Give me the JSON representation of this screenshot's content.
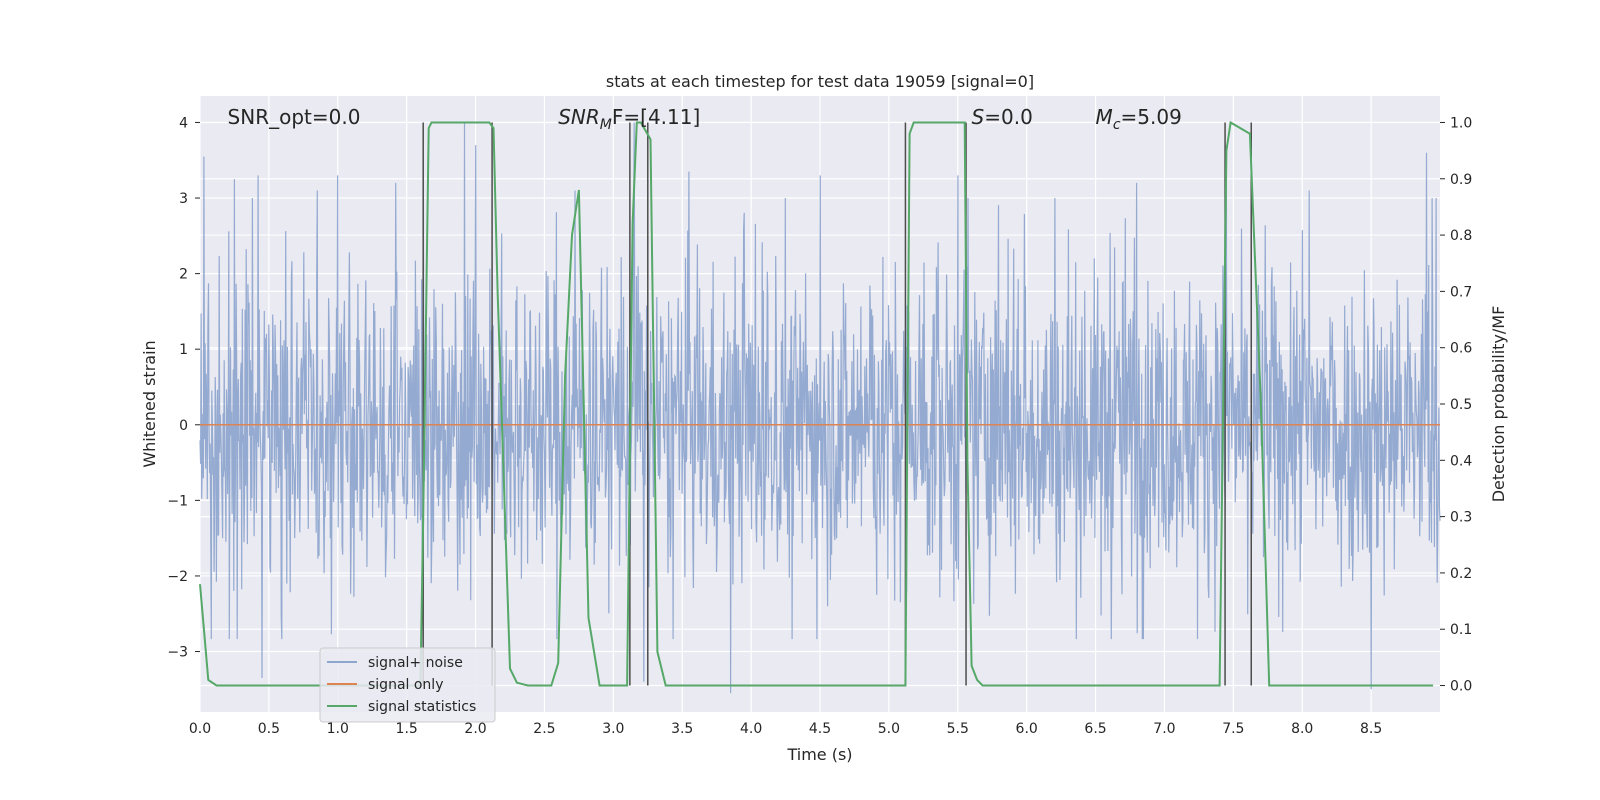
{
  "chart_data": {
    "type": "line",
    "title": "stats at each timestep for test data 19059 [signal=0]",
    "xlabel": "Time (s)",
    "ylabel": "Whitened strain",
    "ylabel_right": "Detection probability/MF",
    "xlim": [
      0,
      9.0
    ],
    "ylim": [
      -3.8,
      4.35
    ],
    "ylim_right": [
      -0.047,
      1.047
    ],
    "xticks": [
      0.0,
      0.5,
      1.0,
      1.5,
      2.0,
      2.5,
      3.0,
      3.5,
      4.0,
      4.5,
      5.0,
      5.5,
      6.0,
      6.5,
      7.0,
      7.5,
      8.0,
      8.5
    ],
    "xtick_labels": [
      "0.0",
      "0.5",
      "1.0",
      "1.5",
      "2.0",
      "2.5",
      "3.0",
      "3.5",
      "4.0",
      "4.5",
      "5.0",
      "5.5",
      "6.0",
      "6.5",
      "7.0",
      "7.5",
      "8.0",
      "8.5"
    ],
    "yticks": [
      -3,
      -2,
      -1,
      0,
      1,
      2,
      3,
      4
    ],
    "ytick_labels": [
      "−3",
      "−2",
      "−1",
      "0",
      "1",
      "2",
      "3",
      "4"
    ],
    "yticks_right": [
      0.0,
      0.1,
      0.2,
      0.3,
      0.4,
      0.5,
      0.6,
      0.7,
      0.8,
      0.9,
      1.0
    ],
    "ytick_labels_right": [
      "0.0",
      "0.1",
      "0.2",
      "0.3",
      "0.4",
      "0.5",
      "0.6",
      "0.7",
      "0.8",
      "0.9",
      "1.0"
    ],
    "grid": true,
    "legend_position": "lower-left",
    "colors": {
      "background": "#eaeaf2",
      "grid": "#ffffff",
      "noise": "#8fa6cf",
      "signal": "#dd8452",
      "stats": "#55a868",
      "vlines": "#4d4d4d"
    },
    "series": [
      {
        "name": "signal+ noise",
        "axis": "left",
        "kind": "noise",
        "envelope_typical_max": 2.4,
        "envelope_typical_min": -2.1,
        "peak_samples": [
          {
            "x": 0.03,
            "y": 3.55
          },
          {
            "x": 0.25,
            "y": 3.25
          },
          {
            "x": 0.42,
            "y": 3.3
          },
          {
            "x": 0.45,
            "y": -3.35
          },
          {
            "x": 0.85,
            "y": 3.1
          },
          {
            "x": 1.0,
            "y": 3.3
          },
          {
            "x": 1.42,
            "y": 3.2
          },
          {
            "x": 1.62,
            "y": 3.5
          },
          {
            "x": 1.92,
            "y": 4.0
          },
          {
            "x": 2.0,
            "y": 3.7
          },
          {
            "x": 2.72,
            "y": 3.1
          },
          {
            "x": 3.15,
            "y": 4.0
          },
          {
            "x": 3.22,
            "y": -3.4
          },
          {
            "x": 3.55,
            "y": 3.35
          },
          {
            "x": 3.85,
            "y": -3.55
          },
          {
            "x": 4.5,
            "y": 3.3
          },
          {
            "x": 5.5,
            "y": 3.3
          },
          {
            "x": 6.8,
            "y": 3.2
          },
          {
            "x": 7.45,
            "y": 3.7
          },
          {
            "x": 8.05,
            "y": 3.1
          },
          {
            "x": 8.5,
            "y": -3.5
          },
          {
            "x": 8.9,
            "y": 3.6
          }
        ]
      },
      {
        "name": "signal only",
        "axis": "left",
        "x": [
          0,
          9.0
        ],
        "y": [
          0,
          0
        ]
      },
      {
        "name": "signal statistics",
        "axis": "right",
        "x": [
          0.0,
          0.06,
          0.12,
          1.6,
          1.62,
          1.66,
          1.68,
          1.72,
          2.1,
          2.13,
          2.16,
          2.25,
          2.3,
          2.38,
          2.55,
          2.6,
          2.65,
          2.7,
          2.75,
          2.82,
          2.9,
          3.0,
          3.1,
          3.14,
          3.17,
          3.2,
          3.27,
          3.32,
          3.38,
          3.85,
          3.88,
          3.92,
          5.12,
          5.15,
          5.18,
          5.55,
          5.57,
          5.6,
          5.64,
          5.68,
          7.4,
          7.45,
          7.48,
          7.62,
          7.7,
          7.76,
          8.95
        ],
        "y": [
          0.18,
          0.01,
          0.0,
          0.0,
          0.3,
          0.99,
          1.0,
          1.0,
          1.0,
          0.99,
          0.7,
          0.03,
          0.005,
          0.0,
          0.0,
          0.04,
          0.55,
          0.8,
          0.88,
          0.12,
          0.0,
          0.0,
          0.0,
          0.82,
          1.0,
          1.0,
          0.97,
          0.06,
          0.0,
          0.0,
          0.0,
          0.0,
          0.0,
          0.98,
          1.0,
          1.0,
          0.4,
          0.035,
          0.01,
          0.0,
          0.0,
          0.95,
          1.0,
          0.98,
          0.5,
          0.0,
          0.0
        ]
      }
    ],
    "vlines": [
      1.62,
      2.12,
      3.12,
      3.25,
      5.12,
      5.56,
      7.44,
      7.63
    ],
    "annotations": [
      {
        "text": "SNR_opt=0.0",
        "x": 0.2
      },
      {
        "text": "SNR",
        "sub": "M",
        "tail": "F=[4.11]",
        "x": 2.6,
        "italic_head": true
      },
      {
        "text": "S",
        "tail": "=0.0",
        "x": 5.6,
        "italic_head": true
      },
      {
        "text": "M",
        "sub": "c",
        "tail": "=5.09",
        "x": 6.5,
        "italic_head": true
      }
    ]
  }
}
